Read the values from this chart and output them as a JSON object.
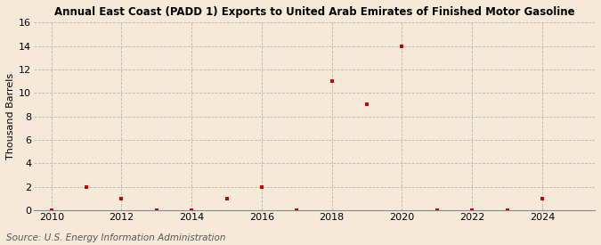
{
  "title": "Annual East Coast (PADD 1) Exports to United Arab Emirates of Finished Motor Gasoline",
  "ylabel": "Thousand Barrels",
  "source": "Source: U.S. Energy Information Administration",
  "years": [
    2010,
    2011,
    2012,
    2013,
    2014,
    2015,
    2016,
    2017,
    2018,
    2019,
    2020,
    2021,
    2022,
    2023,
    2024
  ],
  "values": [
    0,
    2,
    1,
    0,
    0,
    1,
    2,
    0,
    11,
    9,
    14,
    0,
    0,
    0,
    1
  ],
  "marker_color": "#cc0000",
  "marker": "s",
  "marker_size": 3.5,
  "xlim": [
    2009.5,
    2025.5
  ],
  "ylim": [
    0,
    16
  ],
  "yticks": [
    0,
    2,
    4,
    6,
    8,
    10,
    12,
    14,
    16
  ],
  "xticks": [
    2010,
    2012,
    2014,
    2016,
    2018,
    2020,
    2022,
    2024
  ],
  "background_color": "#f5ead8",
  "grid_color": "#aaaaaa",
  "title_fontsize": 8.5,
  "label_fontsize": 8,
  "tick_fontsize": 8,
  "source_fontsize": 7.5
}
